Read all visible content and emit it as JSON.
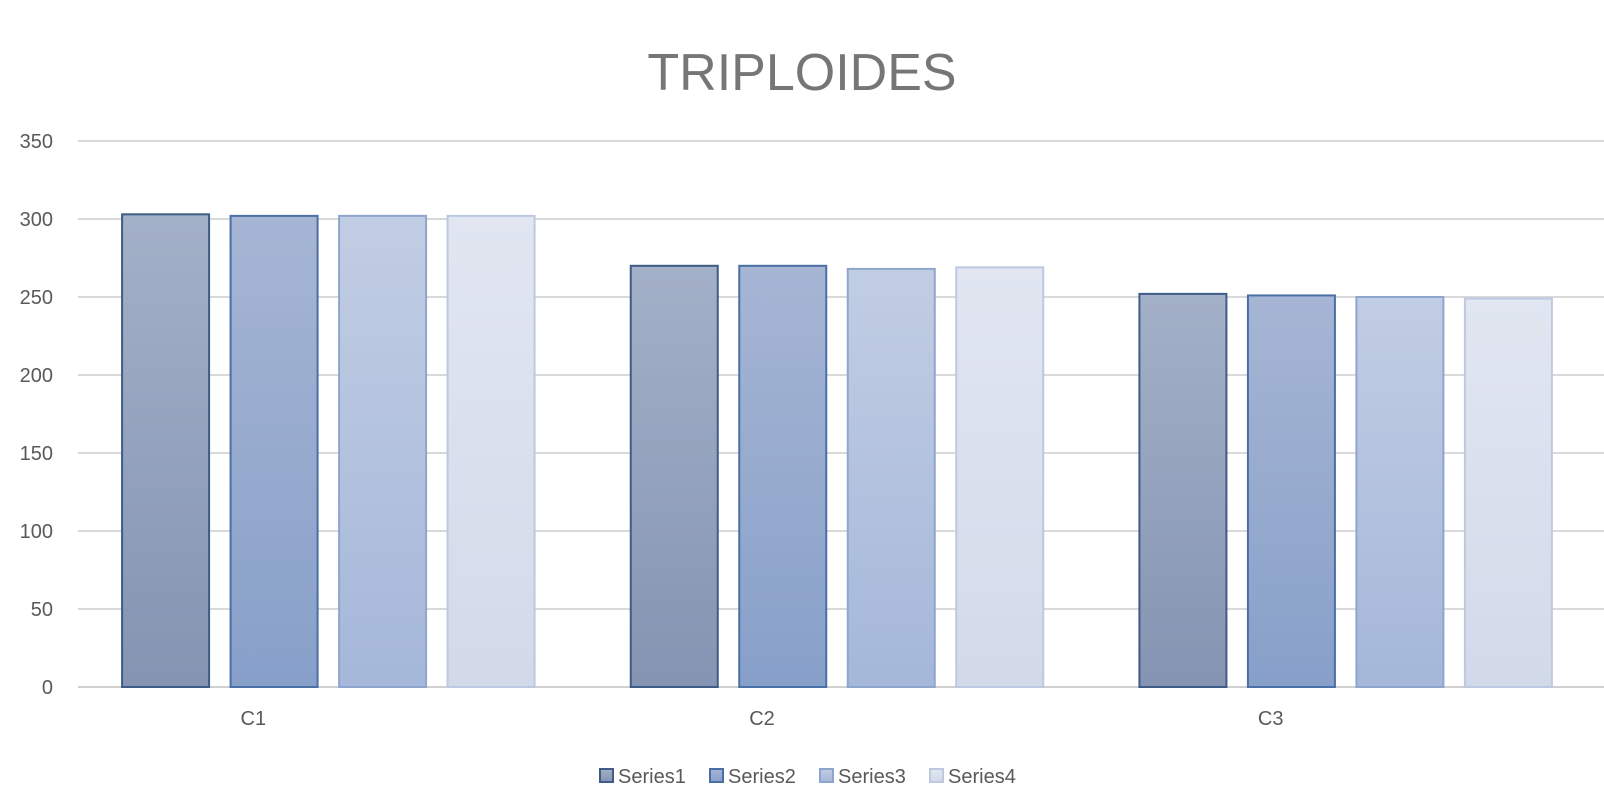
{
  "chart_data": {
    "type": "bar",
    "title": "TRIPLOIDES",
    "categories": [
      "C1",
      "C2",
      "C3"
    ],
    "series": [
      {
        "name": "Series1",
        "values": [
          303,
          270,
          252
        ]
      },
      {
        "name": "Series2",
        "values": [
          302,
          270,
          251
        ]
      },
      {
        "name": "Series3",
        "values": [
          302,
          268,
          250
        ]
      },
      {
        "name": "Series4",
        "values": [
          302,
          269,
          249
        ]
      }
    ],
    "ylim": [
      0,
      350
    ],
    "yticks": [
      "0",
      "50",
      "100",
      "150",
      "200",
      "250",
      "300",
      "350"
    ],
    "grid": true,
    "legend_position": "bottom",
    "colors": {
      "series_fill_top": [
        "#a3b0c8",
        "#a6b5d4",
        "#c1cde3",
        "#e1e6f1"
      ],
      "series_fill_bottom": [
        "#8494b2",
        "#87a0c9",
        "#a5b7da",
        "#d2daea"
      ],
      "series_stroke": [
        "#3e5c86",
        "#4a6fa7",
        "#8ea6cd",
        "#bcc9e0"
      ],
      "grid": "#d9d9d9",
      "axis": "#d0d0d0"
    }
  }
}
